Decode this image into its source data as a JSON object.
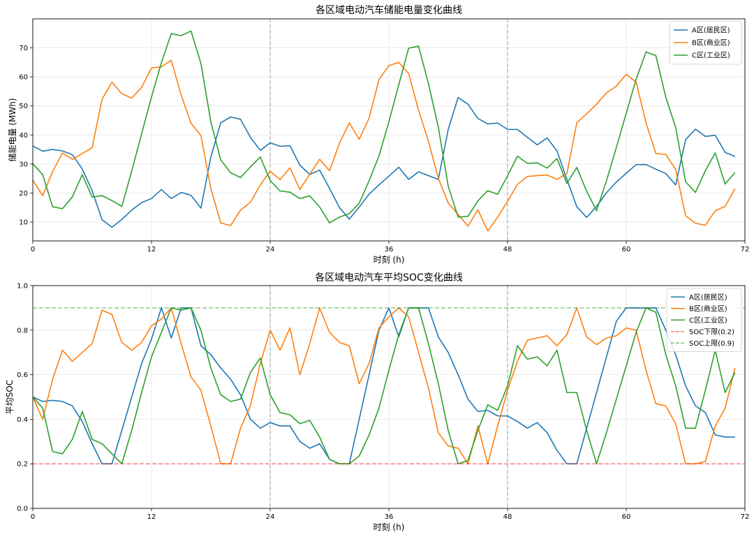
{
  "chart_data": [
    {
      "type": "line",
      "title": "各区域电动汽车储能电量变化曲线",
      "xlabel": "时刻 (h)",
      "ylabel": "储能电量 (MWh)",
      "xlim": [
        0,
        72
      ],
      "ylim": [
        3.5,
        80
      ],
      "xticks": [
        0,
        12,
        24,
        36,
        48,
        60,
        72
      ],
      "yticks": [
        10,
        20,
        30,
        40,
        50,
        60,
        70
      ],
      "grid": true,
      "legend_position": "top-right",
      "vlines": [
        24,
        48
      ],
      "x": [
        0,
        1,
        2,
        3,
        4,
        5,
        6,
        7,
        8,
        9,
        10,
        11,
        12,
        13,
        14,
        15,
        16,
        17,
        18,
        19,
        20,
        21,
        22,
        23,
        24,
        25,
        26,
        27,
        28,
        29,
        30,
        31,
        32,
        33,
        34,
        35,
        36,
        37,
        38,
        39,
        40,
        41,
        42,
        43,
        44,
        45,
        46,
        47,
        48,
        49,
        50,
        51,
        52,
        53,
        54,
        55,
        56,
        57,
        58,
        59,
        60,
        61,
        62,
        63,
        64,
        65,
        66,
        67,
        68,
        69,
        70,
        71
      ],
      "series": [
        {
          "name": "A区(居民区)",
          "color": "#1f77b4",
          "values": [
            36.2,
            34.4,
            35.0,
            34.5,
            33.2,
            28.3,
            20.8,
            10.8,
            8.2,
            10.9,
            14.1,
            16.7,
            18.1,
            21.2,
            18.1,
            20.2,
            19.2,
            14.8,
            32.4,
            44.2,
            46.2,
            45.4,
            39.2,
            34.7,
            37.3,
            36.1,
            36.3,
            29.6,
            26.4,
            27.9,
            21.6,
            15.0,
            11.0,
            15.2,
            19.6,
            22.8,
            25.8,
            28.9,
            24.7,
            27.3,
            26.0,
            24.7,
            41.9,
            52.9,
            50.6,
            45.7,
            43.8,
            44.1,
            41.9,
            41.9,
            39.2,
            36.6,
            39.0,
            34.5,
            24.7,
            15.3,
            11.6,
            15.4,
            20.1,
            23.8,
            26.8,
            29.8,
            29.8,
            28.2,
            26.7,
            22.8,
            38.4,
            42.0,
            39.5,
            39.9,
            34.0,
            32.6
          ]
        },
        {
          "name": "B区(商业区)",
          "color": "#ff7f0e",
          "values": [
            24.4,
            19.1,
            27.4,
            33.8,
            31.6,
            33.6,
            35.6,
            52.3,
            58.2,
            54.2,
            52.7,
            56.4,
            63.1,
            63.5,
            65.7,
            53.7,
            44.0,
            39.8,
            21.6,
            9.7,
            8.8,
            14.1,
            16.8,
            22.8,
            27.5,
            24.6,
            28.7,
            21.2,
            26.5,
            31.6,
            27.7,
            37.1,
            44.2,
            38.5,
            45.8,
            59.1,
            63.9,
            65.0,
            61.2,
            48.5,
            37.8,
            25.1,
            16.6,
            12.6,
            8.6,
            14.2,
            6.9,
            11.7,
            17.1,
            23.0,
            25.7,
            26.0,
            26.2,
            24.7,
            26.7,
            44.2,
            47.3,
            50.6,
            54.5,
            56.8,
            60.9,
            58.2,
            44.2,
            33.6,
            33.3,
            28.1,
            12.2,
            9.6,
            8.9,
            13.9,
            15.4,
            21.5
          ]
        },
        {
          "name": "C区(工业区)",
          "color": "#2ca02c",
          "values": [
            30.1,
            26.3,
            15.3,
            14.6,
            18.7,
            26.3,
            18.6,
            19.1,
            17.4,
            15.4,
            27.6,
            40.4,
            53.1,
            64.9,
            74.9,
            74.2,
            75.8,
            64.6,
            44.5,
            31.4,
            27.0,
            25.3,
            29.0,
            32.4,
            24.3,
            20.7,
            20.3,
            18.1,
            19.0,
            15.2,
            9.7,
            11.7,
            12.9,
            16.5,
            24.2,
            32.8,
            44.5,
            57.3,
            69.9,
            70.6,
            57.7,
            42.7,
            22.4,
            11.7,
            12.0,
            17.3,
            20.8,
            19.6,
            25.9,
            32.7,
            30.2,
            30.4,
            28.6,
            31.9,
            23.3,
            28.8,
            20.6,
            13.9,
            24.2,
            35.7,
            47.5,
            59.2,
            68.6,
            67.3,
            53.0,
            42.6,
            23.9,
            20.2,
            27.7,
            33.8,
            23.1,
            27.1
          ]
        }
      ]
    },
    {
      "type": "line",
      "title": "各区域电动汽车平均SOC变化曲线",
      "xlabel": "时刻 (h)",
      "ylabel": "平均SOC",
      "xlim": [
        0,
        72
      ],
      "ylim": [
        0.0,
        1.0
      ],
      "xticks": [
        0,
        12,
        24,
        36,
        48,
        60,
        72
      ],
      "yticks": [
        0.0,
        0.2,
        0.4,
        0.6,
        0.8,
        1.0
      ],
      "ytick_labels": [
        "0.0",
        "0.2",
        "0.4",
        "0.6",
        "0.8",
        "1.0"
      ],
      "grid": true,
      "legend_position": "top-right",
      "vlines": [
        24,
        48
      ],
      "x": [
        0,
        1,
        2,
        3,
        4,
        5,
        6,
        7,
        8,
        9,
        10,
        11,
        12,
        13,
        14,
        15,
        16,
        17,
        18,
        19,
        20,
        21,
        22,
        23,
        24,
        25,
        26,
        27,
        28,
        29,
        30,
        31,
        32,
        33,
        34,
        35,
        36,
        37,
        38,
        39,
        40,
        41,
        42,
        43,
        44,
        45,
        46,
        47,
        48,
        49,
        50,
        51,
        52,
        53,
        54,
        55,
        56,
        57,
        58,
        59,
        60,
        61,
        62,
        63,
        64,
        65,
        66,
        67,
        68,
        69,
        70,
        71
      ],
      "series": [
        {
          "name": "A区(居民区)",
          "color": "#1f77b4",
          "values": [
            0.5,
            0.48,
            0.485,
            0.48,
            0.46,
            0.39,
            0.29,
            0.2,
            0.2,
            0.35,
            0.5,
            0.65,
            0.76,
            0.9,
            0.765,
            0.9,
            0.9,
            0.73,
            0.69,
            0.63,
            0.58,
            0.51,
            0.4,
            0.36,
            0.385,
            0.37,
            0.37,
            0.3,
            0.27,
            0.29,
            0.22,
            0.2,
            0.2,
            0.4,
            0.6,
            0.8,
            0.9,
            0.77,
            0.9,
            0.9,
            0.9,
            0.77,
            0.7,
            0.6,
            0.49,
            0.435,
            0.44,
            0.415,
            0.415,
            0.39,
            0.36,
            0.385,
            0.34,
            0.26,
            0.2,
            0.2,
            0.36,
            0.52,
            0.68,
            0.84,
            0.9,
            0.9,
            0.9,
            0.9,
            0.8,
            0.69,
            0.55,
            0.46,
            0.43,
            0.33,
            0.32,
            0.32
          ]
        },
        {
          "name": "B区(商业区)",
          "color": "#ff7f0e",
          "values": [
            0.5,
            0.4,
            0.58,
            0.71,
            0.66,
            0.7,
            0.74,
            0.89,
            0.87,
            0.745,
            0.71,
            0.745,
            0.82,
            0.85,
            0.9,
            0.74,
            0.59,
            0.53,
            0.37,
            0.2,
            0.2,
            0.36,
            0.46,
            0.65,
            0.8,
            0.71,
            0.81,
            0.6,
            0.74,
            0.9,
            0.79,
            0.745,
            0.73,
            0.56,
            0.65,
            0.81,
            0.86,
            0.9,
            0.86,
            0.7,
            0.54,
            0.34,
            0.28,
            0.27,
            0.2,
            0.37,
            0.2,
            0.37,
            0.53,
            0.66,
            0.755,
            0.765,
            0.775,
            0.73,
            0.78,
            0.9,
            0.77,
            0.735,
            0.765,
            0.775,
            0.81,
            0.8,
            0.62,
            0.47,
            0.46,
            0.38,
            0.2,
            0.2,
            0.21,
            0.37,
            0.45,
            0.63
          ]
        },
        {
          "name": "C区(工业区)",
          "color": "#2ca02c",
          "values": [
            0.5,
            0.45,
            0.255,
            0.245,
            0.31,
            0.435,
            0.31,
            0.29,
            0.245,
            0.2,
            0.35,
            0.52,
            0.68,
            0.79,
            0.9,
            0.89,
            0.9,
            0.8,
            0.63,
            0.51,
            0.48,
            0.49,
            0.61,
            0.675,
            0.51,
            0.43,
            0.42,
            0.38,
            0.395,
            0.32,
            0.22,
            0.2,
            0.2,
            0.235,
            0.33,
            0.45,
            0.62,
            0.78,
            0.9,
            0.9,
            0.74,
            0.56,
            0.35,
            0.2,
            0.215,
            0.35,
            0.465,
            0.44,
            0.55,
            0.73,
            0.67,
            0.68,
            0.64,
            0.71,
            0.52,
            0.52,
            0.35,
            0.2,
            0.34,
            0.49,
            0.64,
            0.79,
            0.9,
            0.88,
            0.69,
            0.55,
            0.36,
            0.36,
            0.53,
            0.71,
            0.52,
            0.61
          ]
        },
        {
          "name": "SOC下限(0.2)",
          "color": "#ff0000",
          "dashed": true,
          "hline": 0.2
        },
        {
          "name": "SOC上限(0.9)",
          "color": "#008000",
          "dashed": true,
          "hline": 0.9
        }
      ]
    }
  ]
}
